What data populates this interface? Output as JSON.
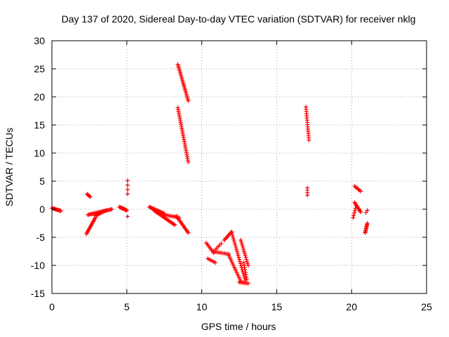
{
  "chart_data": {
    "type": "scatter",
    "title": "Day 137 of 2020, Sidereal Day-to-day VTEC variation (SDTVAR) for receiver nklg",
    "xlabel": "GPS time / hours",
    "ylabel": "SDTVAR / TECUs",
    "xlim": [
      0,
      25
    ],
    "ylim": [
      -15,
      30
    ],
    "xticks": [
      0,
      5,
      10,
      15,
      20,
      25
    ],
    "yticks": [
      -15,
      -10,
      -5,
      0,
      5,
      10,
      15,
      20,
      25,
      30
    ],
    "grid": true,
    "marker": "plus",
    "color": "#ff0000",
    "segments": [
      {
        "x0": 0.0,
        "y0": 0.2,
        "x1": 0.6,
        "y1": -0.3,
        "n": 12
      },
      {
        "x0": 2.35,
        "y0": 2.7,
        "x1": 2.55,
        "y1": 2.2,
        "n": 5
      },
      {
        "x0": 2.3,
        "y0": -4.4,
        "x1": 2.9,
        "y1": -1.5,
        "n": 14
      },
      {
        "x0": 2.4,
        "y0": -1.0,
        "x1": 4.0,
        "y1": 0.0,
        "n": 24
      },
      {
        "x0": 2.9,
        "y0": -1.2,
        "x1": 3.6,
        "y1": -0.2,
        "n": 10
      },
      {
        "x0": 4.5,
        "y0": 0.4,
        "x1": 5.0,
        "y1": -0.2,
        "n": 12
      },
      {
        "x0": 5.05,
        "y0": 5.1,
        "x1": 5.05,
        "y1": 2.7,
        "n": 4
      },
      {
        "x0": 5.05,
        "y0": -1.3,
        "x1": 5.05,
        "y1": -1.3,
        "n": 1
      },
      {
        "x0": 6.5,
        "y0": 0.4,
        "x1": 7.5,
        "y1": -0.8,
        "n": 18
      },
      {
        "x0": 6.8,
        "y0": -0.2,
        "x1": 8.2,
        "y1": -2.8,
        "n": 22
      },
      {
        "x0": 7.5,
        "y0": -1.0,
        "x1": 8.5,
        "y1": -1.5,
        "n": 12
      },
      {
        "x0": 8.3,
        "y0": -1.2,
        "x1": 9.1,
        "y1": -4.2,
        "n": 14
      },
      {
        "x0": 8.4,
        "y0": 25.8,
        "x1": 9.1,
        "y1": 19.3,
        "n": 24
      },
      {
        "x0": 8.4,
        "y0": 18.1,
        "x1": 9.1,
        "y1": 8.4,
        "n": 30
      },
      {
        "x0": 10.3,
        "y0": -6.0,
        "x1": 10.8,
        "y1": -7.8,
        "n": 8
      },
      {
        "x0": 10.4,
        "y0": -8.8,
        "x1": 10.9,
        "y1": -9.5,
        "n": 6
      },
      {
        "x0": 10.8,
        "y0": -7.5,
        "x1": 11.3,
        "y1": -6.1,
        "n": 6
      },
      {
        "x0": 10.9,
        "y0": -7.6,
        "x1": 11.8,
        "y1": -8.0,
        "n": 10
      },
      {
        "x0": 11.5,
        "y0": -5.5,
        "x1": 12.0,
        "y1": -4.0,
        "n": 8
      },
      {
        "x0": 11.8,
        "y0": -8.2,
        "x1": 12.6,
        "y1": -12.8,
        "n": 16
      },
      {
        "x0": 12.0,
        "y0": -4.2,
        "x1": 12.9,
        "y1": -12.6,
        "n": 24
      },
      {
        "x0": 12.5,
        "y0": -13.0,
        "x1": 13.1,
        "y1": -13.2,
        "n": 8
      },
      {
        "x0": 12.6,
        "y0": -5.5,
        "x1": 13.1,
        "y1": -10.0,
        "n": 14
      },
      {
        "x0": 12.8,
        "y0": -9.5,
        "x1": 13.0,
        "y1": -12.5,
        "n": 8
      },
      {
        "x0": 16.95,
        "y0": 18.2,
        "x1": 17.15,
        "y1": 12.3,
        "n": 16
      },
      {
        "x0": 17.05,
        "y0": 3.8,
        "x1": 17.05,
        "y1": 2.5,
        "n": 4
      },
      {
        "x0": 20.2,
        "y0": 4.1,
        "x1": 20.6,
        "y1": 3.2,
        "n": 6
      },
      {
        "x0": 20.2,
        "y0": 1.2,
        "x1": 20.6,
        "y1": -0.5,
        "n": 10
      },
      {
        "x0": 20.1,
        "y0": -1.5,
        "x1": 20.3,
        "y1": 0.6,
        "n": 6
      },
      {
        "x0": 20.9,
        "y0": -4.2,
        "x1": 21.05,
        "y1": -2.5,
        "n": 10
      },
      {
        "x0": 20.95,
        "y0": -0.6,
        "x1": 21.05,
        "y1": -0.2,
        "n": 2
      }
    ]
  }
}
